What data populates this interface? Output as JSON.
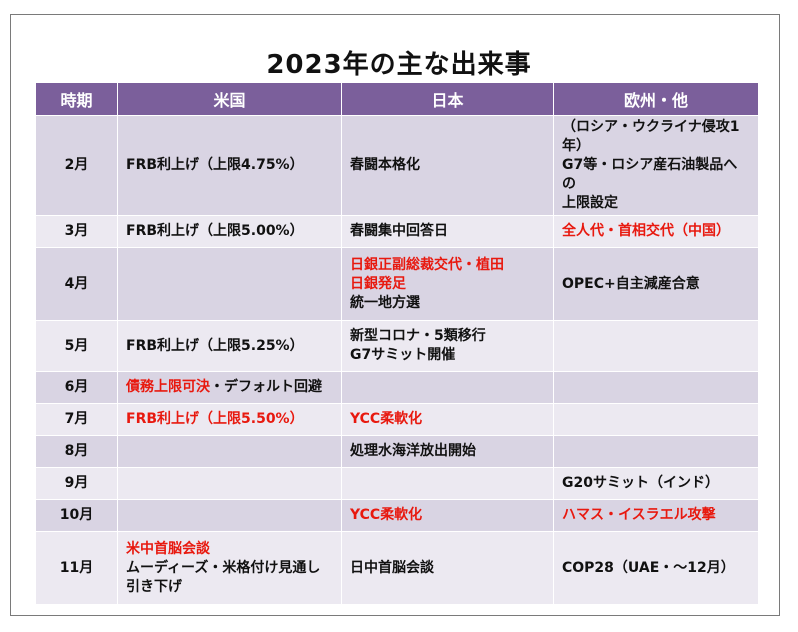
{
  "title": "2023年の主な出来事",
  "headers": [
    "時期",
    "米国",
    "日本",
    "欧州・他"
  ],
  "rows": [
    {
      "period": "2月",
      "us": [
        {
          "text": "FRB利上げ（上限4.75%）",
          "red": false
        }
      ],
      "jp": [
        {
          "text": "春闘本格化",
          "red": false
        }
      ],
      "eu": [
        {
          "text": "（ロシア・ウクライナ侵攻1年）",
          "red": false
        },
        {
          "text": "G7等・ロシア産石油製品への",
          "red": false
        },
        {
          "text": "上限設定",
          "red": false
        }
      ]
    },
    {
      "period": "3月",
      "us": [
        {
          "text": "FRB利上げ（上限5.00%）",
          "red": false
        }
      ],
      "jp": [
        {
          "text": "春闘集中回答日",
          "red": false
        }
      ],
      "eu": [
        {
          "text": "全人代・首相交代（中国）",
          "red": true
        }
      ]
    },
    {
      "period": "4月",
      "us": [],
      "jp": [
        {
          "text": "日銀正副総裁交代・植田",
          "red": true
        },
        {
          "text": "日銀発足",
          "red": true
        },
        {
          "text": "統一地方選",
          "red": false
        }
      ],
      "eu": [
        {
          "text": "OPEC+自主減産合意",
          "red": false
        }
      ]
    },
    {
      "period": "5月",
      "us": [
        {
          "text": "FRB利上げ（上限5.25%）",
          "red": false
        }
      ],
      "jp": [
        {
          "text": "新型コロナ・5類移行",
          "red": false
        },
        {
          "text": "G7サミット開催",
          "red": false
        }
      ],
      "eu": []
    },
    {
      "period": "6月",
      "us": [
        {
          "text": "債務上限可決",
          "red": true,
          "suffix": "・デフォルト回避"
        }
      ],
      "jp": [],
      "eu": []
    },
    {
      "period": "7月",
      "us": [
        {
          "text": "FRB利上げ（上限5.50%）",
          "red": true
        }
      ],
      "jp": [
        {
          "text": "YCC柔軟化",
          "red": true
        }
      ],
      "eu": []
    },
    {
      "period": "8月",
      "us": [],
      "jp": [
        {
          "text": "処理水海洋放出開始",
          "red": false
        }
      ],
      "eu": []
    },
    {
      "period": "9月",
      "us": [],
      "jp": [],
      "eu": [
        {
          "text": "G20サミット（インド）",
          "red": false
        }
      ]
    },
    {
      "period": "10月",
      "us": [],
      "jp": [
        {
          "text": "YCC柔軟化",
          "red": true
        }
      ],
      "eu": [
        {
          "text": "ハマス・イスラエル攻撃",
          "red": true
        }
      ]
    },
    {
      "period": "11月",
      "us": [
        {
          "text": "米中首脳会談",
          "red": true
        },
        {
          "text": "ムーディーズ・米格付け見通し",
          "red": false
        },
        {
          "text": "引き下げ",
          "red": false
        }
      ],
      "jp": [
        {
          "text": "日中首脳会談",
          "red": false
        }
      ],
      "eu": [
        {
          "text": "COP28（UAE・～12月）",
          "red": false
        }
      ]
    }
  ],
  "colors": {
    "header_bg": "#7b5f9b",
    "row_dark": "#d9d4e3",
    "row_light": "#ece9f1",
    "highlight_text": "#e8190f"
  }
}
